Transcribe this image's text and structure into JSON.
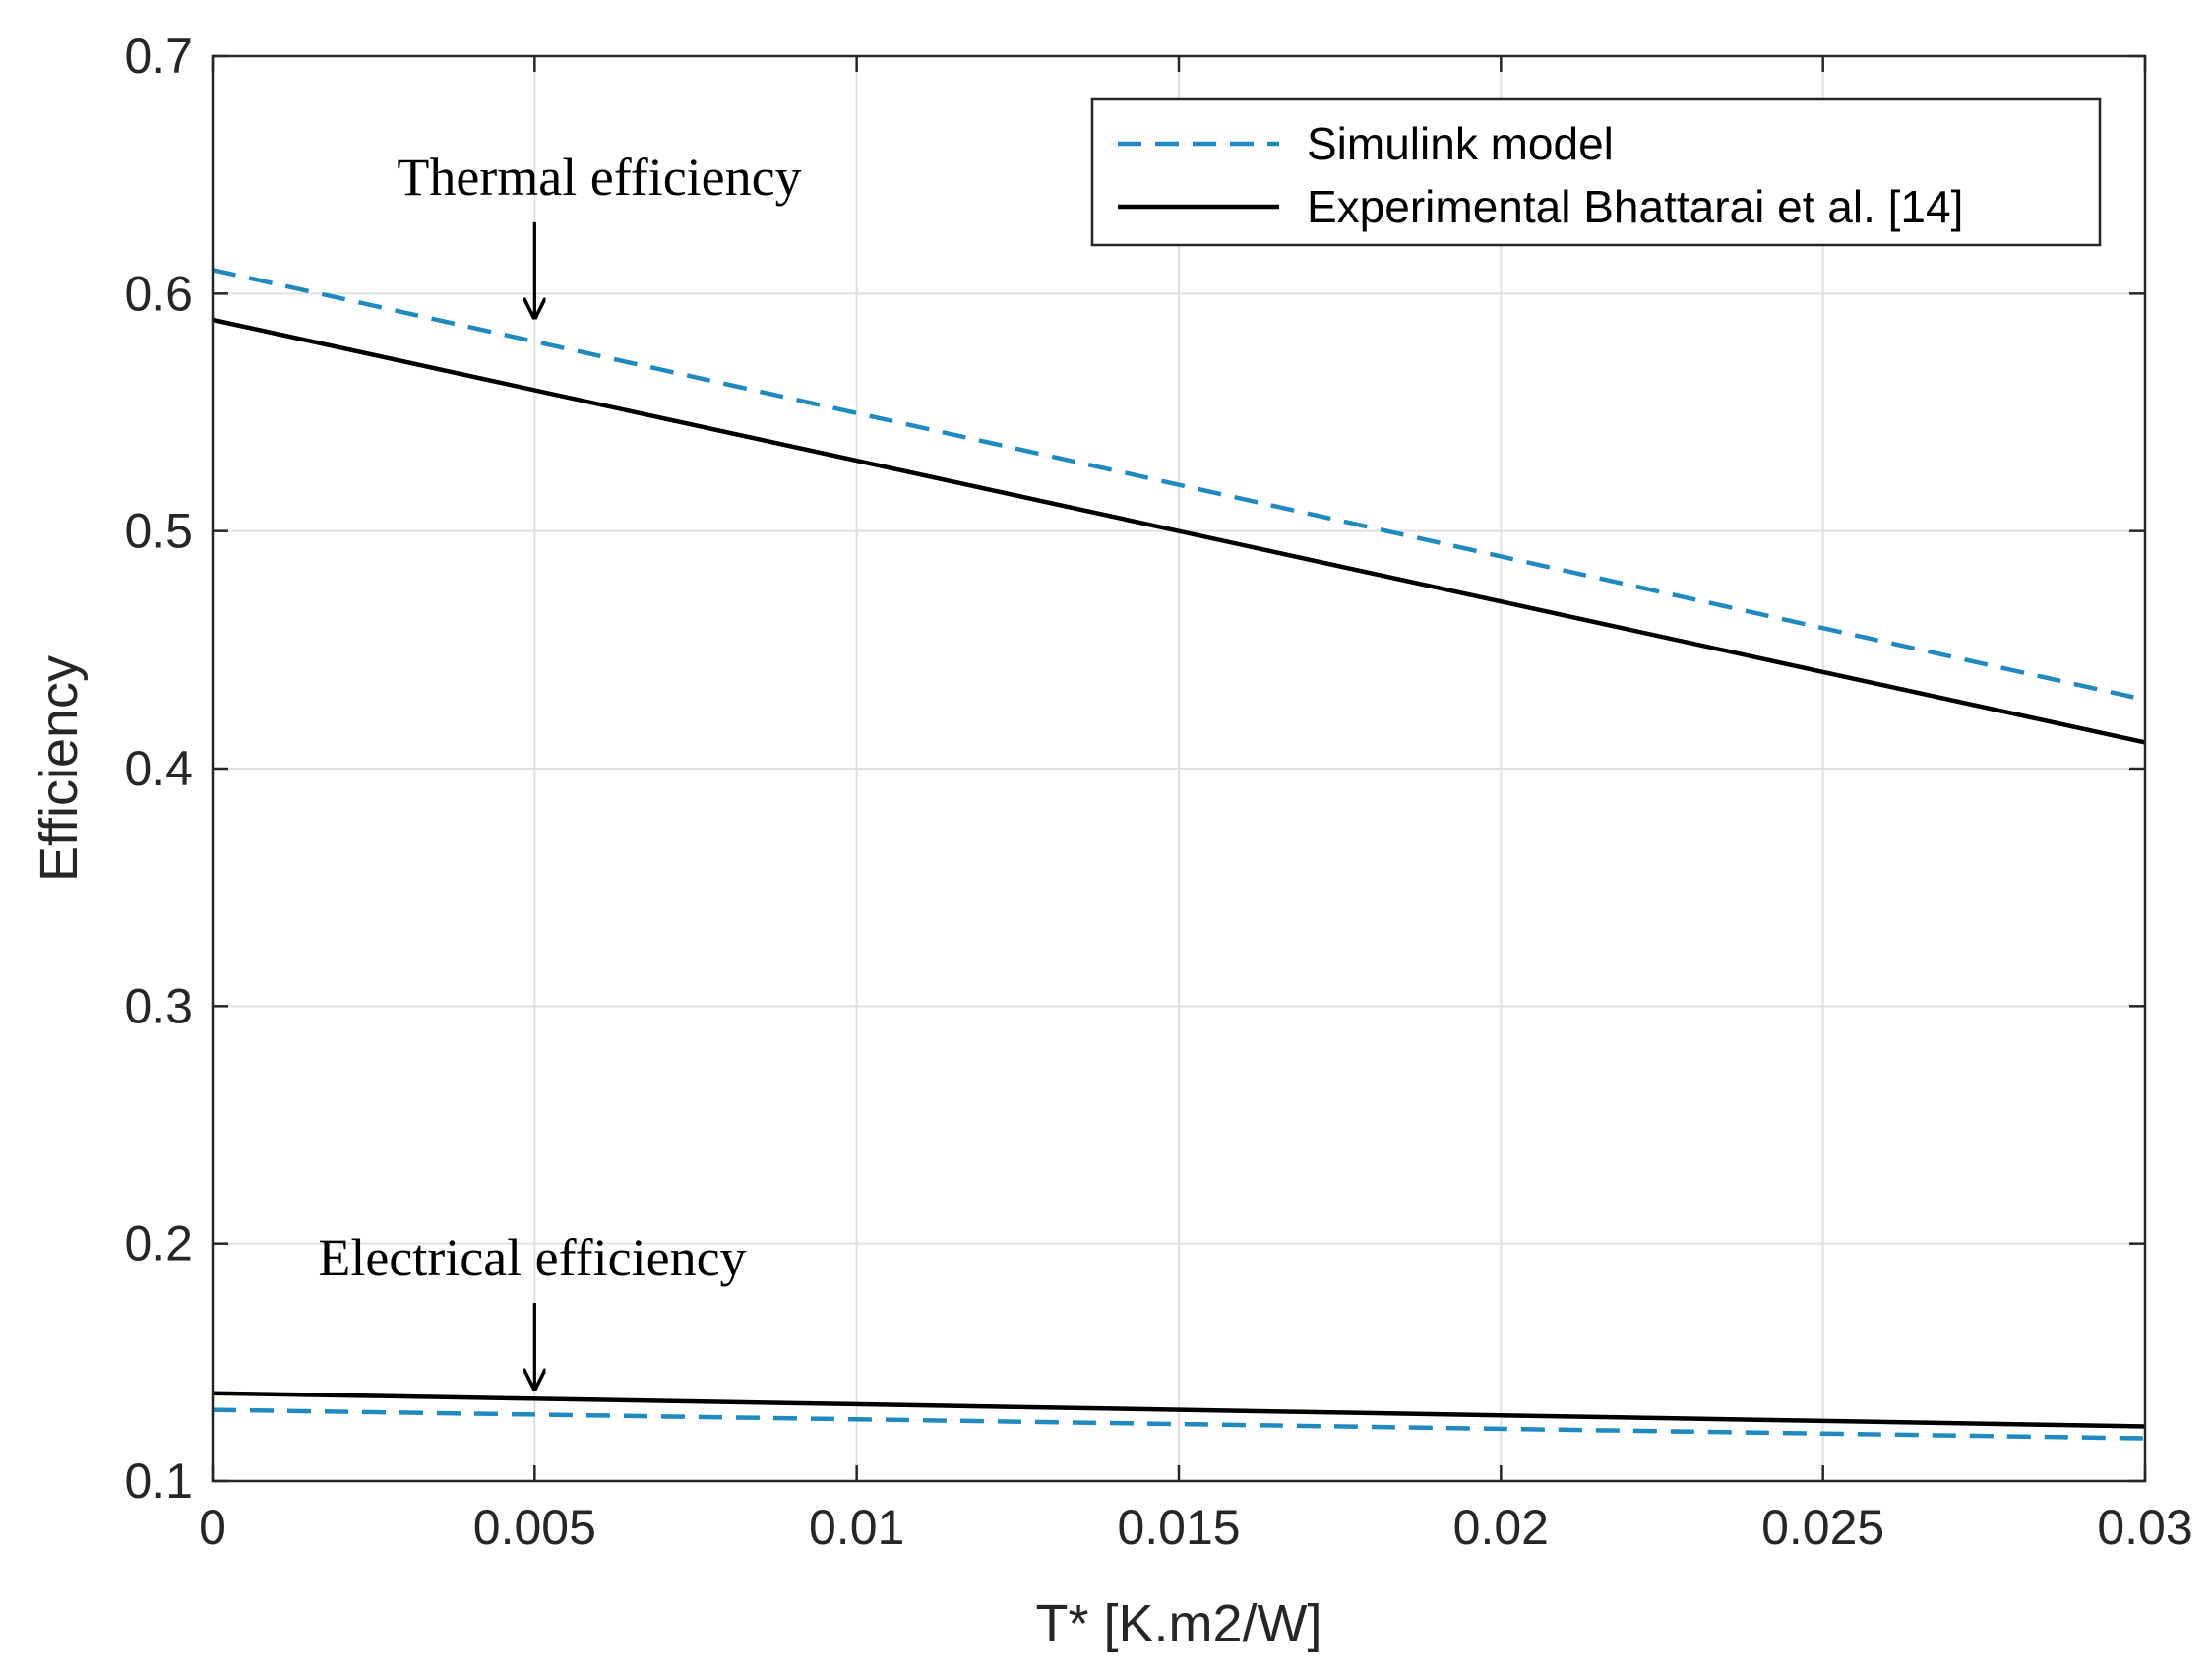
{
  "chart_data": {
    "type": "line",
    "title": "",
    "xlabel": "T* [K.m2/W]",
    "ylabel": "Efficiency",
    "xlim": [
      0,
      0.03
    ],
    "ylim": [
      0.1,
      0.7
    ],
    "xticks": [
      0,
      0.005,
      0.01,
      0.015,
      0.02,
      0.025,
      0.03
    ],
    "xtick_labels": [
      "0",
      "0.005",
      "0.01",
      "0.015",
      "0.02",
      "0.025",
      "0.03"
    ],
    "yticks": [
      0.1,
      0.2,
      0.3,
      0.4,
      0.5,
      0.6,
      0.7
    ],
    "ytick_labels": [
      "0.1",
      "0.2",
      "0.3",
      "0.4",
      "0.5",
      "0.6",
      "0.7"
    ],
    "grid": true,
    "legend_position": "top-right",
    "legend": [
      {
        "label": "Simulink model",
        "color": "#1f8ac0",
        "style": "dashed"
      },
      {
        "label": "Experimental Bhattarai et al. [14]",
        "color": "#000000",
        "style": "solid"
      }
    ],
    "series": [
      {
        "name": "Simulink model (thermal)",
        "legend_index": 0,
        "x": [
          0,
          0.03
        ],
        "y": [
          0.61,
          0.429
        ]
      },
      {
        "name": "Experimental Bhattarai et al. [14] (thermal)",
        "legend_index": 1,
        "x": [
          0,
          0.03
        ],
        "y": [
          0.589,
          0.411
        ]
      },
      {
        "name": "Experimental Bhattarai et al. [14] (electrical)",
        "legend_index": 1,
        "x": [
          0,
          0.03
        ],
        "y": [
          0.137,
          0.123
        ]
      },
      {
        "name": "Simulink model (electrical)",
        "legend_index": 0,
        "x": [
          0,
          0.03
        ],
        "y": [
          0.13,
          0.118
        ]
      }
    ],
    "annotations": [
      {
        "text": "Thermal efficiency",
        "arrow_x": 0.005,
        "arrow_from_y": 0.63,
        "arrow_to_y": 0.59
      },
      {
        "text": "Electrical efficiency",
        "arrow_x": 0.005,
        "arrow_from_y": 0.175,
        "arrow_to_y": 0.139
      }
    ]
  }
}
